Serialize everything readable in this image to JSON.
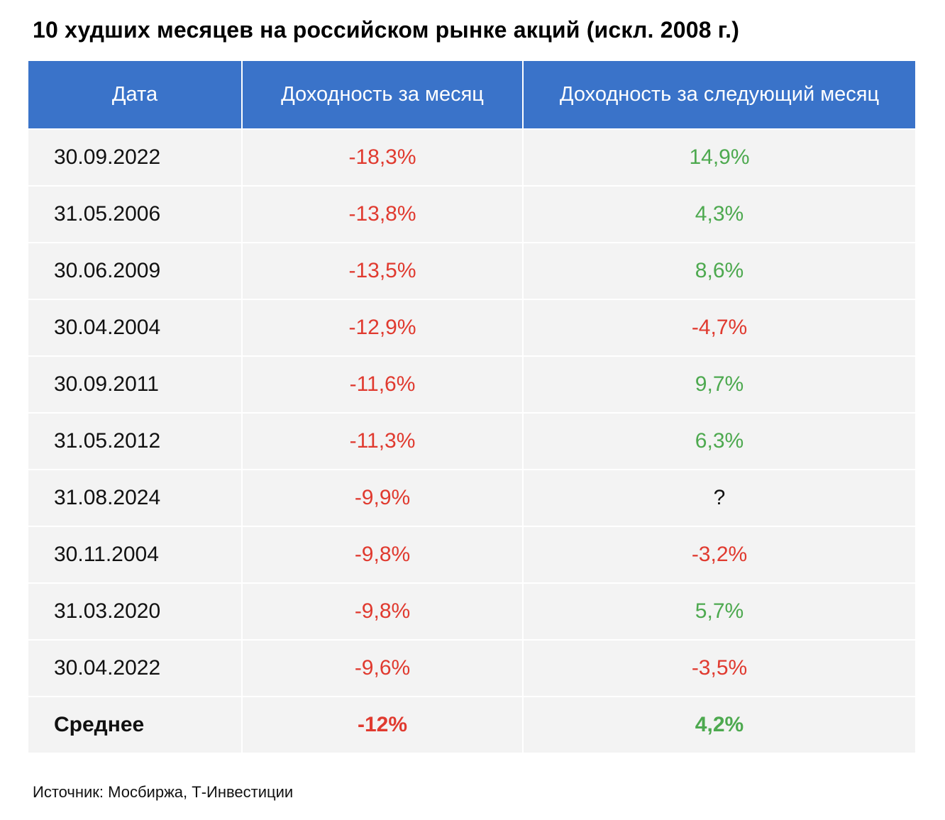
{
  "title": "10 худших месяцев на российском рынке акций (искл. 2008 г.)",
  "colors": {
    "header_bg": "#3a73c9",
    "row_bg": "#f3f3f3",
    "negative": "#e03a2f",
    "positive": "#4da94f"
  },
  "chart_data": {
    "type": "table",
    "title": "10 худших месяцев на российском рынке акций (искл. 2008 г.)",
    "columns": [
      "Дата",
      "Доходность за месяц",
      "Доходность за следующий месяц"
    ],
    "rows": [
      {
        "date": "30.09.2022",
        "month_return": "-18,3%",
        "next_month_return": "14,9%"
      },
      {
        "date": "31.05.2006",
        "month_return": "-13,8%",
        "next_month_return": "4,3%"
      },
      {
        "date": "30.06.2009",
        "month_return": "-13,5%",
        "next_month_return": "8,6%"
      },
      {
        "date": "30.04.2004",
        "month_return": "-12,9%",
        "next_month_return": "-4,7%"
      },
      {
        "date": "30.09.2011",
        "month_return": "-11,6%",
        "next_month_return": "9,7%"
      },
      {
        "date": "31.05.2012",
        "month_return": "-11,3%",
        "next_month_return": "6,3%"
      },
      {
        "date": "31.08.2024",
        "month_return": "-9,9%",
        "next_month_return": "?"
      },
      {
        "date": "30.11.2004",
        "month_return": "-9,8%",
        "next_month_return": "-3,2%"
      },
      {
        "date": "31.03.2020",
        "month_return": "-9,8%",
        "next_month_return": "5,7%"
      },
      {
        "date": "30.04.2022",
        "month_return": "-9,6%",
        "next_month_return": "-3,5%"
      }
    ],
    "average": {
      "label": "Среднее",
      "month_return": "-12%",
      "next_month_return": "4,2%"
    }
  },
  "source": "Источник: Мосбиржа, Т-Инвестиции"
}
